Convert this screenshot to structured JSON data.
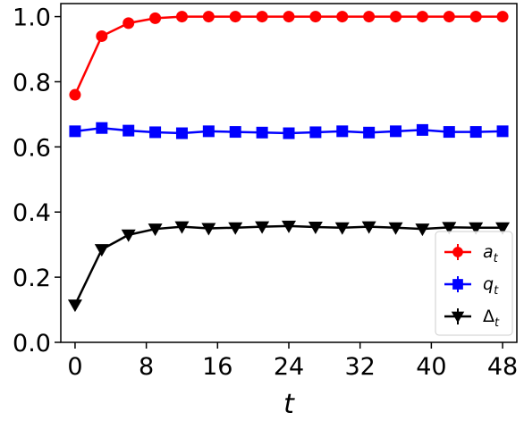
{
  "chart_data": {
    "type": "line",
    "xlabel": "t",
    "ylabel": "",
    "title": "",
    "xlim": [
      -1.6,
      49.6
    ],
    "ylim": [
      0.0,
      1.04
    ],
    "xticks": [
      0,
      8,
      16,
      24,
      32,
      40,
      48
    ],
    "xtick_labels": [
      "0",
      "8",
      "16",
      "24",
      "32",
      "40",
      "48"
    ],
    "yticks": [
      0.0,
      0.2,
      0.4,
      0.6,
      0.8,
      1.0
    ],
    "ytick_labels": [
      "0.0",
      "0.2",
      "0.4",
      "0.6",
      "0.8",
      "1.0"
    ],
    "grid": false,
    "legend_position": "lower-right",
    "x": [
      0,
      3,
      6,
      9,
      12,
      15,
      18,
      21,
      24,
      27,
      30,
      33,
      36,
      39,
      42,
      45,
      48
    ],
    "series": [
      {
        "name": "a",
        "name_sub": "t",
        "color": "#ff0000",
        "marker": "circle",
        "values": [
          0.76,
          0.94,
          0.98,
          0.995,
          1.0,
          1.0,
          1.0,
          1.0,
          1.0,
          1.0,
          1.0,
          1.0,
          1.0,
          1.0,
          1.0,
          1.0,
          1.0
        ]
      },
      {
        "name": "q",
        "name_sub": "t",
        "color": "#0000ff",
        "marker": "square",
        "values": [
          0.648,
          0.658,
          0.65,
          0.645,
          0.642,
          0.648,
          0.646,
          0.644,
          0.642,
          0.645,
          0.648,
          0.644,
          0.648,
          0.652,
          0.646,
          0.646,
          0.648
        ]
      },
      {
        "name": "Δ",
        "name_sub": "t",
        "color": "#000000",
        "marker": "triangle-down",
        "values": [
          0.115,
          0.285,
          0.33,
          0.348,
          0.355,
          0.35,
          0.352,
          0.355,
          0.357,
          0.354,
          0.352,
          0.355,
          0.352,
          0.348,
          0.353,
          0.352,
          0.352
        ]
      }
    ]
  }
}
